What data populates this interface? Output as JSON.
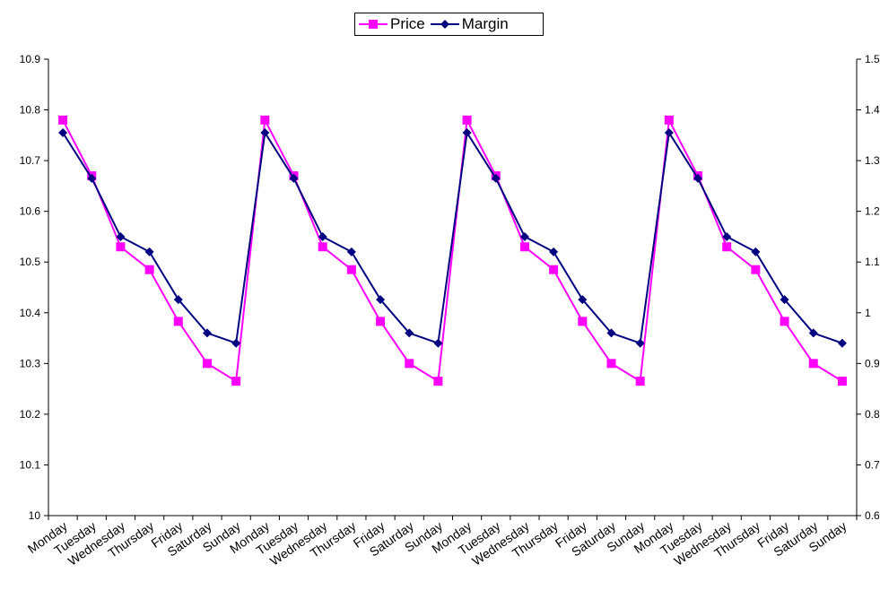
{
  "colors": {
    "price": "#ff00ff",
    "margin": "#000080"
  },
  "chart_data": {
    "type": "line",
    "categories": [
      "Monday",
      "Tuesday",
      "Wednesday",
      "Thursday",
      "Friday",
      "Saturday",
      "Sunday",
      "Monday",
      "Tuesday",
      "Wednesday",
      "Thursday",
      "Friday",
      "Saturday",
      "Sunday",
      "Monday",
      "Tuesday",
      "Wednesday",
      "Thursday",
      "Friday",
      "Saturday",
      "Sunday",
      "Monday",
      "Tuesday",
      "Wednesday",
      "Thursday",
      "Friday",
      "Saturday",
      "Sunday"
    ],
    "series": [
      {
        "name": "Price",
        "axis": "left",
        "marker": "square",
        "values": [
          10.78,
          10.67,
          10.53,
          10.485,
          10.383,
          10.3,
          10.265,
          10.78,
          10.67,
          10.53,
          10.485,
          10.383,
          10.3,
          10.265,
          10.78,
          10.67,
          10.53,
          10.485,
          10.383,
          10.3,
          10.265,
          10.78,
          10.67,
          10.53,
          10.485,
          10.383,
          10.3,
          10.265
        ]
      },
      {
        "name": "Margin",
        "axis": "right",
        "marker": "diamond",
        "values": [
          1.355,
          1.265,
          1.15,
          1.12,
          1.026,
          0.96,
          0.94,
          1.355,
          1.265,
          1.15,
          1.12,
          1.026,
          0.96,
          0.94,
          1.355,
          1.265,
          1.15,
          1.12,
          1.026,
          0.96,
          0.94,
          1.355,
          1.265,
          1.15,
          1.12,
          1.026,
          0.96,
          0.94
        ]
      }
    ],
    "y_left": {
      "min": 10,
      "max": 10.9,
      "ticks": [
        "10",
        "10.1",
        "10.2",
        "10.3",
        "10.4",
        "10.5",
        "10.6",
        "10.7",
        "10.8",
        "10.9"
      ]
    },
    "y_right": {
      "min": 0.6,
      "max": 1.5,
      "ticks": [
        "0.6",
        "0.7",
        "0.8",
        "0.9",
        "1",
        "1.1",
        "1.2",
        "1.3",
        "1.4",
        "1.5"
      ]
    },
    "legend_position": "top-center",
    "grid": false
  }
}
